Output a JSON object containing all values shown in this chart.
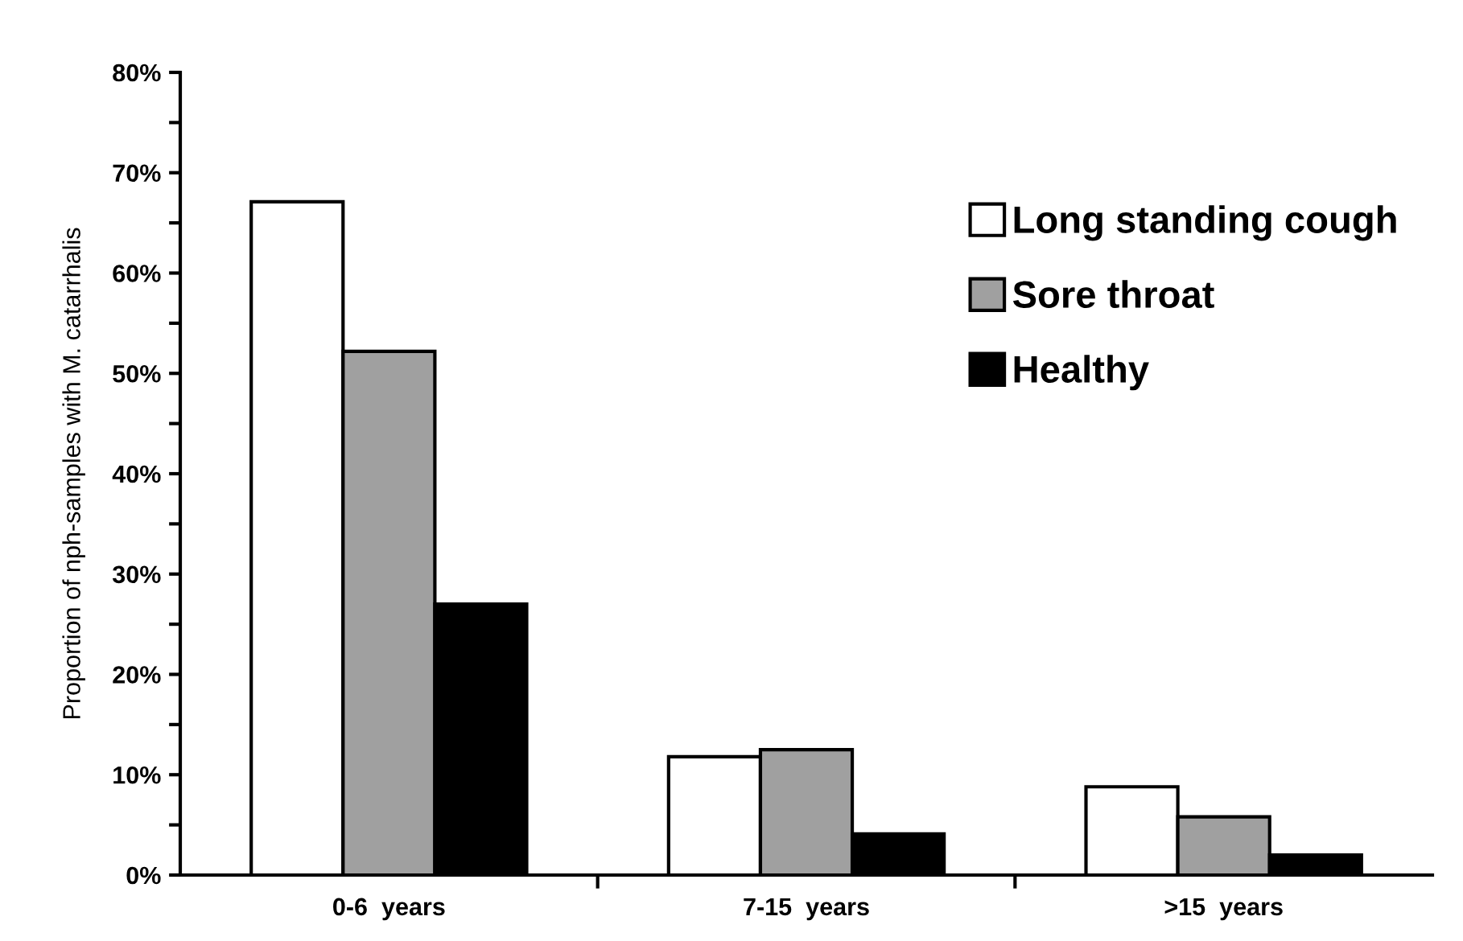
{
  "chart_data": {
    "type": "bar",
    "ylabel": "Proportion of nph-samples with M. catarrhalis",
    "categories": [
      "0-6  years",
      "7-15  years",
      ">15  years"
    ],
    "series": [
      {
        "name": "Long standing cough",
        "color": "#ffffff",
        "values": [
          67.1,
          11.8,
          8.8
        ]
      },
      {
        "name": "Sore throat",
        "color": "#a0a0a0",
        "values": [
          52.2,
          12.5,
          5.8
        ]
      },
      {
        "name": "Healthy",
        "color": "#000000",
        "values": [
          27.0,
          4.1,
          2.0
        ]
      }
    ],
    "ylim": [
      0,
      80
    ],
    "yticks": [
      {
        "value": 0,
        "label": "0%"
      },
      {
        "value": 10,
        "label": "10%"
      },
      {
        "value": 20,
        "label": "20%"
      },
      {
        "value": 30,
        "label": "30%"
      },
      {
        "value": 40,
        "label": "40%"
      },
      {
        "value": 50,
        "label": "50%"
      },
      {
        "value": 60,
        "label": "60%"
      },
      {
        "value": 70,
        "label": "70%"
      },
      {
        "value": 80,
        "label": "80%"
      }
    ],
    "grid": false,
    "legend": "right"
  }
}
